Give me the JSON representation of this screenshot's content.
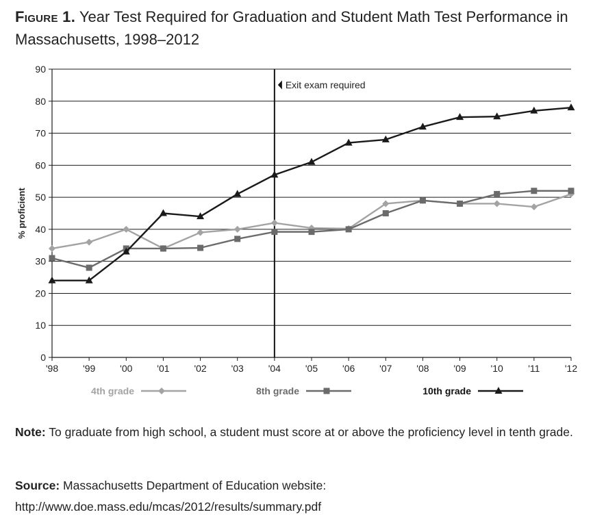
{
  "figure": {
    "label": "Figure 1.",
    "title": "Year Test Required for Graduation and Student Math Test Performance in Massachusetts, 1998–2012"
  },
  "chart_data": {
    "type": "line",
    "ylabel": "% proficient",
    "xlabel": "",
    "ylim": [
      0,
      90
    ],
    "yticks": [
      0,
      10,
      20,
      30,
      40,
      50,
      60,
      70,
      80,
      90
    ],
    "grid": "horizontal",
    "legend_position": "bottom",
    "categories": [
      "'98",
      "'99",
      "'00",
      "'01",
      "'02",
      "'03",
      "'04",
      "'05",
      "'06",
      "'07",
      "'08",
      "'09",
      "'10",
      "'11",
      "'12"
    ],
    "series": [
      {
        "name": "4th grade",
        "marker": "diamond",
        "color": "#a3a3a3",
        "values": [
          34,
          36,
          40,
          34,
          39,
          40,
          42,
          40.4,
          40.2,
          48,
          49,
          48,
          48,
          47,
          51
        ]
      },
      {
        "name": "8th grade",
        "marker": "square",
        "color": "#6b6b6b",
        "values": [
          31,
          28,
          34,
          34,
          34.2,
          37,
          39.2,
          39.2,
          40,
          45,
          49,
          48,
          51,
          52,
          52
        ]
      },
      {
        "name": "10th grade",
        "marker": "triangle",
        "color": "#1a1a1a",
        "values": [
          24,
          24,
          33,
          45,
          44,
          51,
          57,
          61,
          67,
          68,
          72,
          75,
          75.2,
          77,
          78
        ]
      }
    ],
    "annotation": {
      "x": "'04",
      "label": "Exit exam required"
    }
  },
  "note": {
    "label": "Note:",
    "text": "To graduate from high school, a student must score at or above the proficiency level in tenth grade."
  },
  "source": {
    "label": "Source:",
    "text": "Massachusetts Department of Education website: http://www.doe.mass.edu/mcas/2012/results/summary.pdf"
  }
}
